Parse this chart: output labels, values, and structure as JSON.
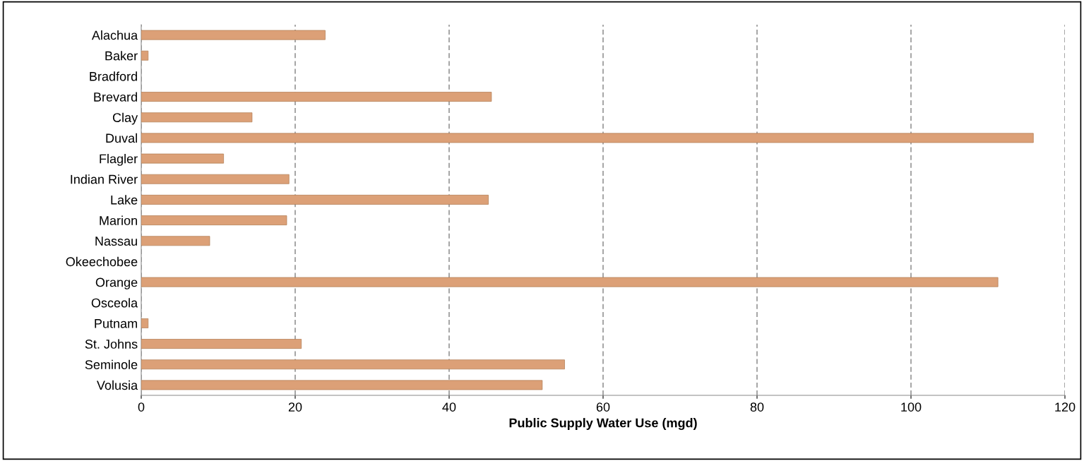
{
  "chart_data": {
    "type": "bar",
    "orientation": "horizontal",
    "xlabel": "Public Supply Water Use (mgd)",
    "categories": [
      "Alachua",
      "Baker",
      "Bradford",
      "Brevard",
      "Clay",
      "Duval",
      "Flagler",
      "Indian River",
      "Lake",
      "Marion",
      "Nassau",
      "Okeechobee",
      "Orange",
      "Osceola",
      "Putnam",
      "St. Johns",
      "Seminole",
      "Volusia"
    ],
    "values": [
      23.9,
      0.9,
      null,
      45.5,
      14.4,
      115.9,
      10.7,
      19.2,
      45.1,
      18.9,
      8.9,
      null,
      111.3,
      null,
      0.9,
      20.8,
      55.0,
      52.1
    ],
    "color": "#dca077",
    "xlim": [
      0,
      120
    ],
    "xticks": [
      0,
      20,
      40,
      60,
      80,
      100,
      120
    ],
    "grid": "x",
    "line_style": "dashed"
  }
}
